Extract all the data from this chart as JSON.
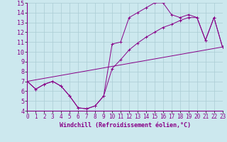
{
  "xlabel": "Windchill (Refroidissement éolien,°C)",
  "xlim": [
    0,
    23
  ],
  "ylim": [
    4,
    15
  ],
  "xticks": [
    0,
    1,
    2,
    3,
    4,
    5,
    6,
    7,
    8,
    9,
    10,
    11,
    12,
    13,
    14,
    15,
    16,
    17,
    18,
    19,
    20,
    21,
    22,
    23
  ],
  "yticks": [
    4,
    5,
    6,
    7,
    8,
    9,
    10,
    11,
    12,
    13,
    14,
    15
  ],
  "bg_color": "#cce8ee",
  "line_color": "#880088",
  "grid_color": "#aaccd4",
  "line1_x": [
    0,
    1,
    2,
    3,
    4,
    5,
    6,
    7,
    8,
    9,
    10,
    11,
    12,
    13,
    14,
    15,
    16,
    17,
    18,
    19,
    20,
    21,
    22,
    23
  ],
  "line1_y": [
    7.0,
    6.2,
    6.7,
    7.0,
    6.5,
    5.5,
    4.3,
    4.2,
    4.5,
    5.5,
    10.8,
    11.0,
    13.5,
    14.0,
    14.5,
    15.0,
    15.0,
    13.8,
    13.5,
    13.8,
    13.5,
    11.2,
    13.5,
    10.5
  ],
  "line2_x": [
    0,
    1,
    2,
    3,
    4,
    5,
    6,
    7,
    8,
    9,
    10,
    11,
    12,
    13,
    14,
    15,
    16,
    17,
    18,
    19,
    20,
    21,
    22,
    23
  ],
  "line2_y": [
    7.0,
    6.2,
    6.7,
    7.0,
    6.5,
    5.5,
    4.3,
    4.2,
    4.5,
    5.5,
    8.3,
    9.2,
    10.2,
    10.9,
    11.5,
    12.0,
    12.5,
    12.8,
    13.2,
    13.5,
    13.5,
    11.2,
    13.5,
    10.5
  ],
  "line3_x": [
    0,
    23
  ],
  "line3_y": [
    7.0,
    10.5
  ],
  "font_size_xlabel": 6,
  "font_size_yticks": 6,
  "font_size_xticks": 5.5,
  "marker_size": 2.5,
  "linewidth": 0.7
}
